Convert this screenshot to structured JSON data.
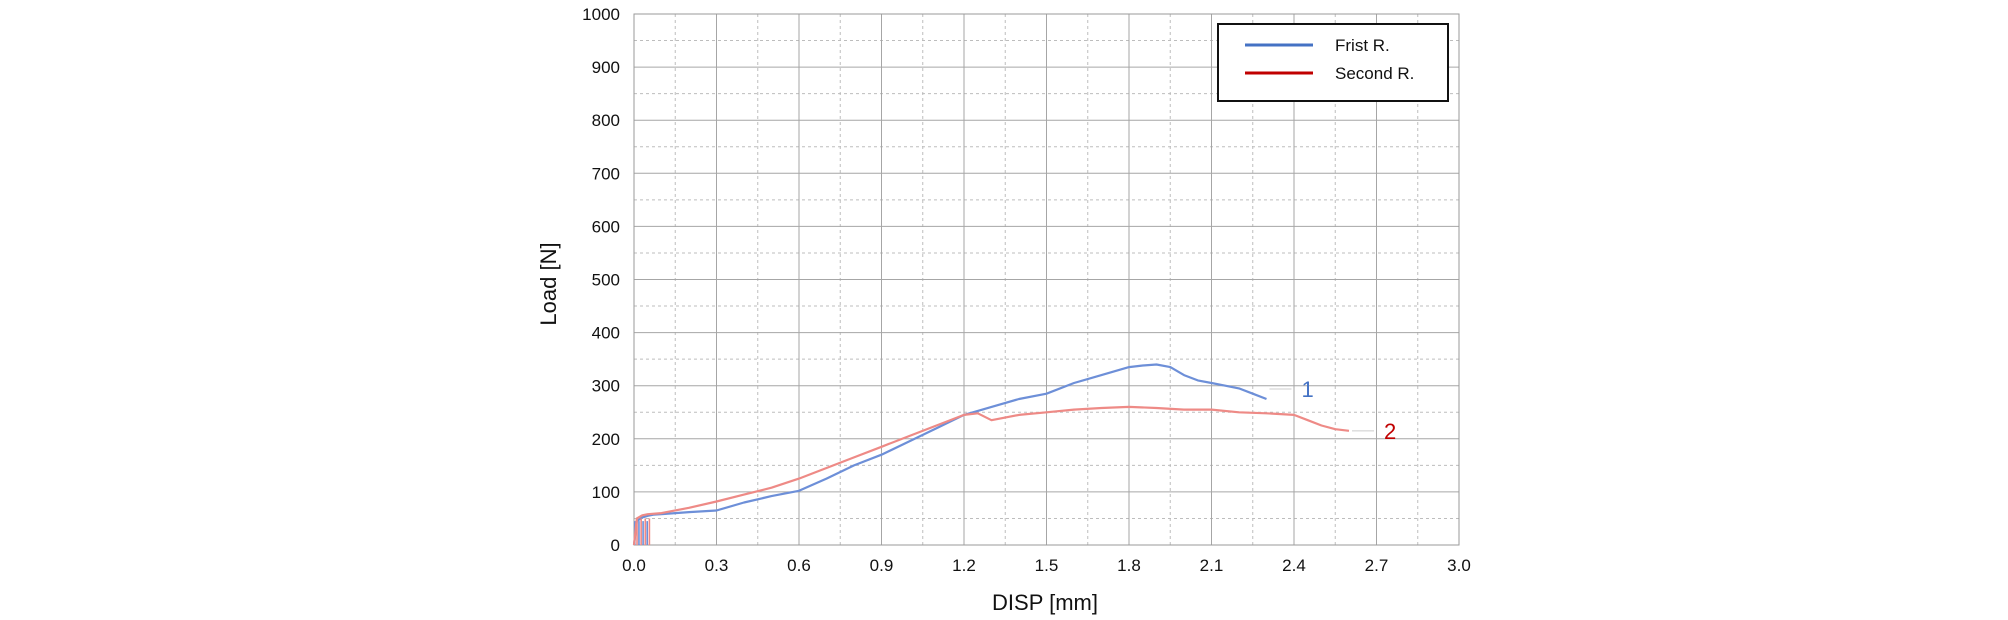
{
  "chart_data": {
    "type": "line",
    "xlabel": "DISP [mm]",
    "ylabel": "Load [N]",
    "xlim": [
      0.0,
      3.0
    ],
    "ylim": [
      0,
      1000
    ],
    "x_ticks": [
      "0.0",
      "0.3",
      "0.6",
      "0.9",
      "1.2",
      "1.5",
      "1.8",
      "2.1",
      "2.4",
      "2.7",
      "3.0"
    ],
    "y_ticks": [
      "0",
      "100",
      "200",
      "300",
      "400",
      "500",
      "600",
      "700",
      "800",
      "900",
      "1000"
    ],
    "grid": true,
    "legend_position": "top-right",
    "series": [
      {
        "name": "Frist R.",
        "color": "#4472c4",
        "curve_label": "1",
        "x": [
          0.0,
          0.01,
          0.03,
          0.05,
          0.07,
          0.1,
          0.15,
          0.2,
          0.3,
          0.4,
          0.5,
          0.6,
          0.7,
          0.8,
          0.9,
          1.0,
          1.1,
          1.2,
          1.3,
          1.4,
          1.5,
          1.6,
          1.7,
          1.8,
          1.85,
          1.9,
          1.95,
          2.0,
          2.05,
          2.1,
          2.15,
          2.2,
          2.25,
          2.3
        ],
        "y": [
          0,
          45,
          52,
          55,
          57,
          58,
          60,
          62,
          65,
          80,
          92,
          102,
          125,
          150,
          170,
          195,
          220,
          245,
          260,
          275,
          285,
          305,
          320,
          335,
          338,
          340,
          335,
          320,
          310,
          305,
          300,
          295,
          285,
          275
        ]
      },
      {
        "name": "Second R.",
        "color": "#c00000",
        "curve_label": "2",
        "x": [
          0.0,
          0.01,
          0.03,
          0.05,
          0.1,
          0.2,
          0.3,
          0.4,
          0.5,
          0.6,
          0.7,
          0.8,
          0.9,
          1.0,
          1.1,
          1.2,
          1.25,
          1.3,
          1.4,
          1.5,
          1.6,
          1.7,
          1.8,
          1.9,
          2.0,
          2.1,
          2.2,
          2.3,
          2.4,
          2.45,
          2.5,
          2.55,
          2.6
        ],
        "y": [
          0,
          50,
          56,
          58,
          60,
          70,
          82,
          95,
          108,
          125,
          145,
          165,
          185,
          205,
          225,
          245,
          248,
          235,
          245,
          250,
          255,
          258,
          260,
          258,
          255,
          255,
          250,
          248,
          245,
          235,
          225,
          218,
          215
        ]
      }
    ]
  }
}
